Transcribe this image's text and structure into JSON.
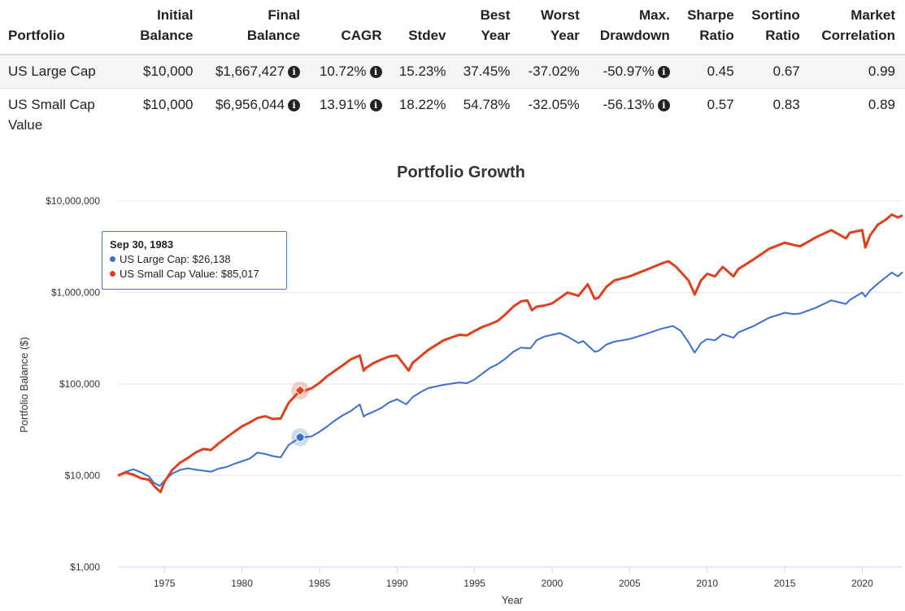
{
  "stats_table": {
    "headers": [
      [
        "",
        "Portfolio"
      ],
      [
        "Initial",
        "Balance"
      ],
      [
        "Final",
        "Balance"
      ],
      [
        "",
        "CAGR"
      ],
      [
        "",
        "Stdev"
      ],
      [
        "Best",
        "Year"
      ],
      [
        "Worst",
        "Year"
      ],
      [
        "Max.",
        "Drawdown"
      ],
      [
        "Sharpe",
        "Ratio"
      ],
      [
        "Sortino",
        "Ratio"
      ],
      [
        "Market",
        "Correlation"
      ]
    ],
    "info_icon": "info-circle-icon",
    "rows": [
      {
        "portfolio": "US Large Cap",
        "initial": "$10,000",
        "final": "$1,667,427",
        "cagr": "10.72%",
        "stdev": "15.23%",
        "best": "37.45%",
        "worst": "-37.02%",
        "maxdd": "-50.97%",
        "sharpe": "0.45",
        "sortino": "0.67",
        "corr": "0.99"
      },
      {
        "portfolio": "US Small Cap Value",
        "initial": "$10,000",
        "final": "$6,956,044",
        "cagr": "13.91%",
        "stdev": "18.22%",
        "best": "54.78%",
        "worst": "-32.05%",
        "maxdd": "-56.13%",
        "sharpe": "0.57",
        "sortino": "0.83",
        "corr": "0.89"
      }
    ]
  },
  "tooltip": {
    "date": "Sep 30, 1983",
    "items": [
      {
        "label": "US Large Cap: $26,138",
        "color": "#3a6fd0"
      },
      {
        "label": "US Small Cap Value: $85,017",
        "color": "#e0401c"
      }
    ]
  },
  "chart_data": {
    "type": "line",
    "title": "Portfolio Growth",
    "xlabel": "Year",
    "ylabel": "Portfolio Balance ($)",
    "yscale": "log",
    "ylim": [
      1000,
      10000000
    ],
    "xlim": [
      1972,
      2022.6
    ],
    "x_ticks": [
      1975,
      1980,
      1985,
      1990,
      1995,
      2000,
      2005,
      2010,
      2015,
      2020
    ],
    "y_ticks": [
      {
        "value": 1000,
        "label": "$1,000"
      },
      {
        "value": 10000,
        "label": "$10,000"
      },
      {
        "value": 100000,
        "label": "$100,000"
      },
      {
        "value": 1000000,
        "label": "$1,000,000"
      },
      {
        "value": 10000000,
        "label": "$10,000,000"
      }
    ],
    "grid": true,
    "highlight": {
      "x": 1983.75,
      "values": [
        26138,
        85017
      ]
    },
    "series": [
      {
        "name": "US Large Cap",
        "color": "#3a6fd0",
        "points": [
          [
            1972.0,
            10000
          ],
          [
            1972.5,
            11000
          ],
          [
            1973.0,
            11700
          ],
          [
            1973.5,
            10800
          ],
          [
            1974.0,
            9800
          ],
          [
            1974.3,
            8400
          ],
          [
            1974.7,
            7700
          ],
          [
            1975.0,
            8800
          ],
          [
            1975.5,
            10500
          ],
          [
            1976.0,
            11500
          ],
          [
            1976.5,
            12000
          ],
          [
            1977.0,
            11600
          ],
          [
            1977.5,
            11300
          ],
          [
            1978.0,
            11000
          ],
          [
            1978.5,
            11900
          ],
          [
            1979.0,
            12400
          ],
          [
            1979.5,
            13400
          ],
          [
            1980.0,
            14300
          ],
          [
            1980.5,
            15300
          ],
          [
            1981.0,
            17800
          ],
          [
            1981.5,
            17200
          ],
          [
            1982.0,
            16300
          ],
          [
            1982.5,
            15800
          ],
          [
            1983.0,
            21500
          ],
          [
            1983.75,
            26138
          ],
          [
            1984.0,
            26200
          ],
          [
            1984.5,
            26800
          ],
          [
            1985.0,
            30000
          ],
          [
            1985.5,
            34500
          ],
          [
            1986.0,
            40000
          ],
          [
            1986.5,
            45500
          ],
          [
            1987.0,
            50500
          ],
          [
            1987.6,
            60000
          ],
          [
            1987.85,
            44000
          ],
          [
            1988.0,
            46000
          ],
          [
            1988.5,
            50000
          ],
          [
            1989.0,
            55000
          ],
          [
            1989.5,
            63000
          ],
          [
            1990.0,
            68000
          ],
          [
            1990.6,
            60000
          ],
          [
            1991.0,
            72000
          ],
          [
            1991.5,
            81000
          ],
          [
            1992.0,
            90000
          ],
          [
            1993.0,
            98000
          ],
          [
            1994.0,
            104000
          ],
          [
            1994.5,
            102000
          ],
          [
            1995.0,
            112000
          ],
          [
            1995.5,
            130000
          ],
          [
            1996.0,
            150000
          ],
          [
            1996.5,
            165000
          ],
          [
            1997.0,
            190000
          ],
          [
            1997.5,
            225000
          ],
          [
            1998.0,
            250000
          ],
          [
            1998.6,
            245000
          ],
          [
            1999.0,
            300000
          ],
          [
            1999.5,
            330000
          ],
          [
            2000.0,
            345000
          ],
          [
            2000.5,
            360000
          ],
          [
            2001.0,
            330000
          ],
          [
            2001.7,
            280000
          ],
          [
            2002.0,
            295000
          ],
          [
            2002.75,
            225000
          ],
          [
            2003.0,
            230000
          ],
          [
            2003.5,
            270000
          ],
          [
            2004.0,
            290000
          ],
          [
            2005.0,
            310000
          ],
          [
            2006.0,
            350000
          ],
          [
            2007.0,
            400000
          ],
          [
            2007.8,
            430000
          ],
          [
            2008.3,
            380000
          ],
          [
            2008.8,
            285000
          ],
          [
            2009.2,
            220000
          ],
          [
            2009.6,
            280000
          ],
          [
            2010.0,
            310000
          ],
          [
            2010.5,
            300000
          ],
          [
            2011.0,
            350000
          ],
          [
            2011.7,
            320000
          ],
          [
            2012.0,
            365000
          ],
          [
            2013.0,
            430000
          ],
          [
            2014.0,
            530000
          ],
          [
            2015.0,
            600000
          ],
          [
            2015.6,
            580000
          ],
          [
            2016.0,
            590000
          ],
          [
            2017.0,
            680000
          ],
          [
            2018.0,
            820000
          ],
          [
            2018.95,
            750000
          ],
          [
            2019.2,
            830000
          ],
          [
            2020.0,
            1000000
          ],
          [
            2020.2,
            900000
          ],
          [
            2020.5,
            1050000
          ],
          [
            2021.0,
            1250000
          ],
          [
            2021.9,
            1650000
          ],
          [
            2022.3,
            1500000
          ],
          [
            2022.6,
            1667427
          ]
        ]
      },
      {
        "name": "US Small Cap Value",
        "color": "#e0401c",
        "points": [
          [
            1972.0,
            10000
          ],
          [
            1972.5,
            10800
          ],
          [
            1973.0,
            10200
          ],
          [
            1973.5,
            9300
          ],
          [
            1974.0,
            9000
          ],
          [
            1974.4,
            7500
          ],
          [
            1974.75,
            6600
          ],
          [
            1975.0,
            8500
          ],
          [
            1975.5,
            11500
          ],
          [
            1976.0,
            13800
          ],
          [
            1976.5,
            15500
          ],
          [
            1977.0,
            17800
          ],
          [
            1977.5,
            19500
          ],
          [
            1978.0,
            19000
          ],
          [
            1978.5,
            22500
          ],
          [
            1979.0,
            26000
          ],
          [
            1979.5,
            30000
          ],
          [
            1980.0,
            34500
          ],
          [
            1980.5,
            38000
          ],
          [
            1981.0,
            42500
          ],
          [
            1981.5,
            44500
          ],
          [
            1982.0,
            41500
          ],
          [
            1982.5,
            42000
          ],
          [
            1983.0,
            62000
          ],
          [
            1983.75,
            85017
          ],
          [
            1984.0,
            84000
          ],
          [
            1984.5,
            90000
          ],
          [
            1985.0,
            103000
          ],
          [
            1985.5,
            122000
          ],
          [
            1986.0,
            140000
          ],
          [
            1986.5,
            160000
          ],
          [
            1987.0,
            185000
          ],
          [
            1987.6,
            205000
          ],
          [
            1987.85,
            140000
          ],
          [
            1988.0,
            150000
          ],
          [
            1988.5,
            170000
          ],
          [
            1989.0,
            185000
          ],
          [
            1989.5,
            200000
          ],
          [
            1990.0,
            205000
          ],
          [
            1990.75,
            140000
          ],
          [
            1991.0,
            170000
          ],
          [
            1991.5,
            200000
          ],
          [
            1992.0,
            235000
          ],
          [
            1993.0,
            300000
          ],
          [
            1994.0,
            345000
          ],
          [
            1994.5,
            340000
          ],
          [
            1995.0,
            380000
          ],
          [
            1995.5,
            420000
          ],
          [
            1996.0,
            450000
          ],
          [
            1996.5,
            490000
          ],
          [
            1997.0,
            580000
          ],
          [
            1997.5,
            700000
          ],
          [
            1998.0,
            800000
          ],
          [
            1998.4,
            820000
          ],
          [
            1998.7,
            640000
          ],
          [
            1999.0,
            700000
          ],
          [
            1999.5,
            720000
          ],
          [
            2000.0,
            760000
          ],
          [
            2000.5,
            870000
          ],
          [
            2001.0,
            1000000
          ],
          [
            2001.7,
            920000
          ],
          [
            2002.3,
            1230000
          ],
          [
            2002.75,
            850000
          ],
          [
            2003.0,
            880000
          ],
          [
            2003.5,
            1150000
          ],
          [
            2004.0,
            1350000
          ],
          [
            2005.0,
            1500000
          ],
          [
            2006.0,
            1750000
          ],
          [
            2007.0,
            2050000
          ],
          [
            2007.5,
            2200000
          ],
          [
            2008.0,
            1900000
          ],
          [
            2008.8,
            1350000
          ],
          [
            2009.2,
            950000
          ],
          [
            2009.6,
            1350000
          ],
          [
            2010.0,
            1600000
          ],
          [
            2010.5,
            1500000
          ],
          [
            2011.0,
            1900000
          ],
          [
            2011.7,
            1500000
          ],
          [
            2012.0,
            1800000
          ],
          [
            2013.0,
            2300000
          ],
          [
            2014.0,
            3000000
          ],
          [
            2015.0,
            3500000
          ],
          [
            2015.6,
            3300000
          ],
          [
            2016.0,
            3200000
          ],
          [
            2017.0,
            4000000
          ],
          [
            2018.0,
            4800000
          ],
          [
            2018.95,
            3900000
          ],
          [
            2019.2,
            4500000
          ],
          [
            2020.0,
            4800000
          ],
          [
            2020.2,
            3100000
          ],
          [
            2020.5,
            4200000
          ],
          [
            2021.0,
            5500000
          ],
          [
            2021.5,
            6200000
          ],
          [
            2021.9,
            7100000
          ],
          [
            2022.3,
            6600000
          ],
          [
            2022.6,
            6956044
          ]
        ]
      }
    ]
  }
}
